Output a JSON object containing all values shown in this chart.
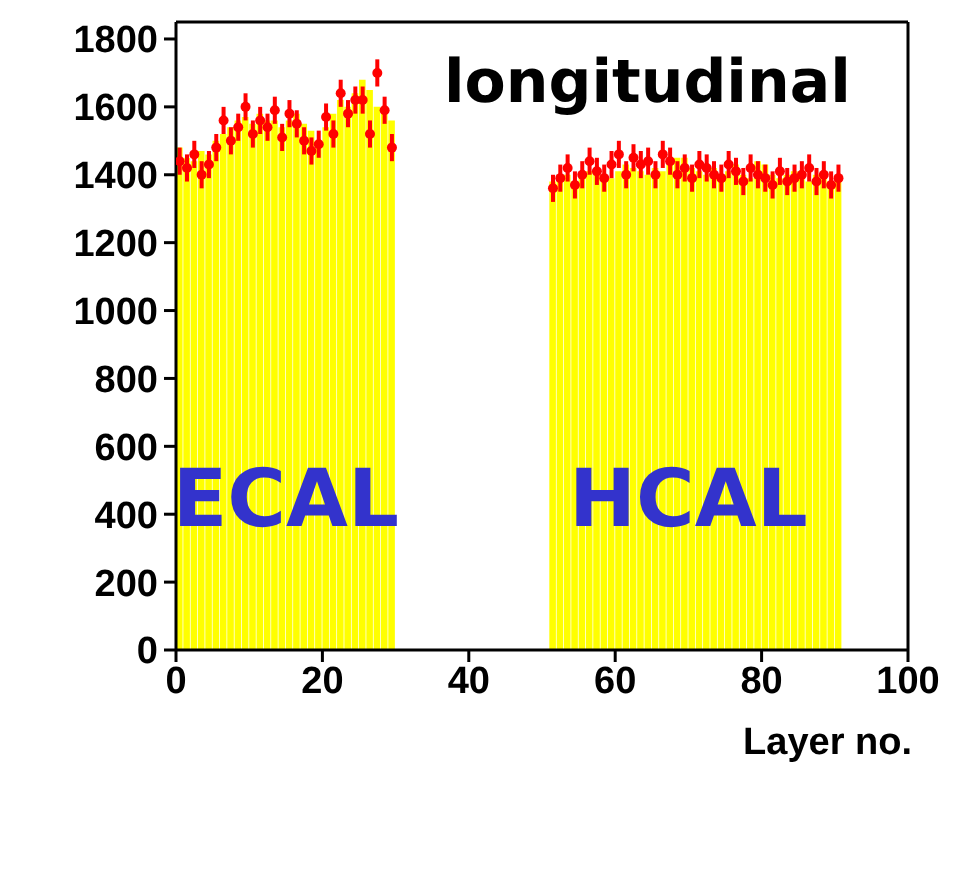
{
  "chart_data": {
    "type": "histogram",
    "title": "longitudinal",
    "xlabel": "Layer no.",
    "bins": [
      0,
      1,
      2,
      3,
      4,
      5,
      6,
      7,
      8,
      9,
      10,
      11,
      12,
      13,
      14,
      15,
      16,
      17,
      18,
      19,
      20,
      21,
      22,
      23,
      24,
      25,
      26,
      27,
      28,
      29,
      30,
      31,
      32,
      33,
      34,
      35,
      36,
      37,
      38,
      39,
      40,
      41,
      42,
      43,
      44,
      45,
      46,
      47,
      48,
      49,
      50,
      51,
      52,
      53,
      54,
      55,
      56,
      57,
      58,
      59,
      60,
      61,
      62,
      63,
      64,
      65,
      66,
      67,
      68,
      69,
      70,
      71,
      72,
      73,
      74,
      75,
      76,
      77,
      78,
      79,
      80,
      81,
      82,
      83,
      84,
      85,
      86,
      87,
      88,
      89,
      90,
      91
    ],
    "values": [
      1480,
      1450,
      1440,
      1470,
      1460,
      1500,
      1520,
      1540,
      1560,
      1570,
      1550,
      1580,
      1560,
      1560,
      1540,
      1560,
      1580,
      1550,
      1530,
      1500,
      1540,
      1580,
      1620,
      1600,
      1640,
      1680,
      1650,
      1600,
      1580,
      1560,
      0,
      0,
      0,
      0,
      0,
      0,
      0,
      0,
      0,
      0,
      0,
      0,
      0,
      0,
      0,
      0,
      0,
      0,
      0,
      0,
      0,
      1380,
      1390,
      1400,
      1380,
      1400,
      1410,
      1420,
      1400,
      1390,
      1410,
      1430,
      1420,
      1410,
      1400,
      1420,
      1410,
      1430,
      1450,
      1450,
      1420,
      1410,
      1400,
      1420,
      1400,
      1410,
      1430,
      1400,
      1390,
      1440,
      1430,
      1400,
      1390,
      1400,
      1410,
      1390,
      1380,
      1400,
      1390,
      1380,
      1400
    ],
    "color": "#ffff00",
    "series": [
      {
        "type": "scatter",
        "color": "#ff0000",
        "marker": "circle",
        "x": [
          0.5,
          1.5,
          2.5,
          3.5,
          4.5,
          5.5,
          6.5,
          7.5,
          8.5,
          9.5,
          10.5,
          11.5,
          12.5,
          13.5,
          14.5,
          15.5,
          16.5,
          17.5,
          18.5,
          19.5,
          20.5,
          21.5,
          22.5,
          23.5,
          24.5,
          25.5,
          26.5,
          27.5,
          28.5,
          29.5,
          51.5,
          52.5,
          53.5,
          54.5,
          55.5,
          56.5,
          57.5,
          58.5,
          59.5,
          60.5,
          61.5,
          62.5,
          63.5,
          64.5,
          65.5,
          66.5,
          67.5,
          68.5,
          69.5,
          70.5,
          71.5,
          72.5,
          73.5,
          74.5,
          75.5,
          76.5,
          77.5,
          78.5,
          79.5,
          80.5,
          81.5,
          82.5,
          83.5,
          84.5,
          85.5,
          86.5,
          87.5,
          88.5,
          89.5,
          90.5
        ],
        "values": [
          1440,
          1420,
          1460,
          1400,
          1430,
          1480,
          1560,
          1500,
          1540,
          1600,
          1520,
          1560,
          1540,
          1590,
          1510,
          1580,
          1550,
          1500,
          1470,
          1490,
          1570,
          1520,
          1640,
          1580,
          1620,
          1620,
          1520,
          1700,
          1590,
          1480,
          1360,
          1390,
          1420,
          1370,
          1400,
          1440,
          1410,
          1390,
          1430,
          1460,
          1400,
          1450,
          1430,
          1440,
          1400,
          1460,
          1440,
          1400,
          1420,
          1390,
          1430,
          1420,
          1400,
          1390,
          1430,
          1410,
          1380,
          1420,
          1400,
          1390,
          1370,
          1410,
          1380,
          1390,
          1400,
          1420,
          1380,
          1400,
          1370,
          1390
        ],
        "errors": [
          40,
          40,
          40,
          40,
          40,
          40,
          40,
          40,
          40,
          40,
          40,
          40,
          40,
          40,
          40,
          40,
          40,
          40,
          40,
          40,
          40,
          40,
          40,
          40,
          40,
          40,
          40,
          40,
          40,
          40,
          40,
          40,
          40,
          40,
          40,
          40,
          40,
          40,
          40,
          40,
          40,
          40,
          40,
          40,
          40,
          40,
          40,
          40,
          40,
          40,
          40,
          40,
          40,
          40,
          40,
          40,
          40,
          40,
          40,
          40,
          40,
          40,
          40,
          40,
          40,
          40,
          40,
          40,
          40,
          40
        ],
        "xerrors": [
          0.5,
          0.5,
          0.5,
          0.5,
          0.5,
          0.5,
          0.5,
          0.5,
          0.5,
          0.5,
          0.5,
          0.5,
          0.5,
          0.5,
          0.5,
          0.5,
          0.5,
          0.5,
          0.5,
          0.5,
          0.5,
          0.5,
          0.5,
          0.5,
          0.5,
          0.5,
          0.5,
          0.5,
          0.5,
          0.5,
          0.5,
          0.5,
          0.5,
          0.5,
          0.5,
          0.5,
          0.5,
          0.5,
          0.5,
          0.5,
          0.5,
          0.5,
          0.5,
          0.5,
          0.5,
          0.5,
          0.5,
          0.5,
          0.5,
          0.5,
          0.5,
          0.5,
          0.5,
          0.5,
          0.5,
          0.5,
          0.5,
          0.5,
          0.5,
          0.5,
          0.5,
          0.5,
          0.5,
          0.5,
          0.5,
          0.5,
          0.5,
          0.5,
          0.5,
          0.5
        ]
      }
    ],
    "annotations": [
      {
        "text": "ECAL",
        "x": 15,
        "y": 450
      },
      {
        "text": "HCAL",
        "x": 70,
        "y": 450
      }
    ],
    "xlim": [
      0,
      100
    ],
    "xticks": [
      0,
      20,
      40,
      60,
      80,
      100
    ],
    "ylim": [
      0,
      1850
    ],
    "yticks": [
      0,
      200,
      400,
      600,
      800,
      1000,
      1200,
      1400,
      1600,
      1800
    ],
    "grid": false,
    "legend": false
  }
}
